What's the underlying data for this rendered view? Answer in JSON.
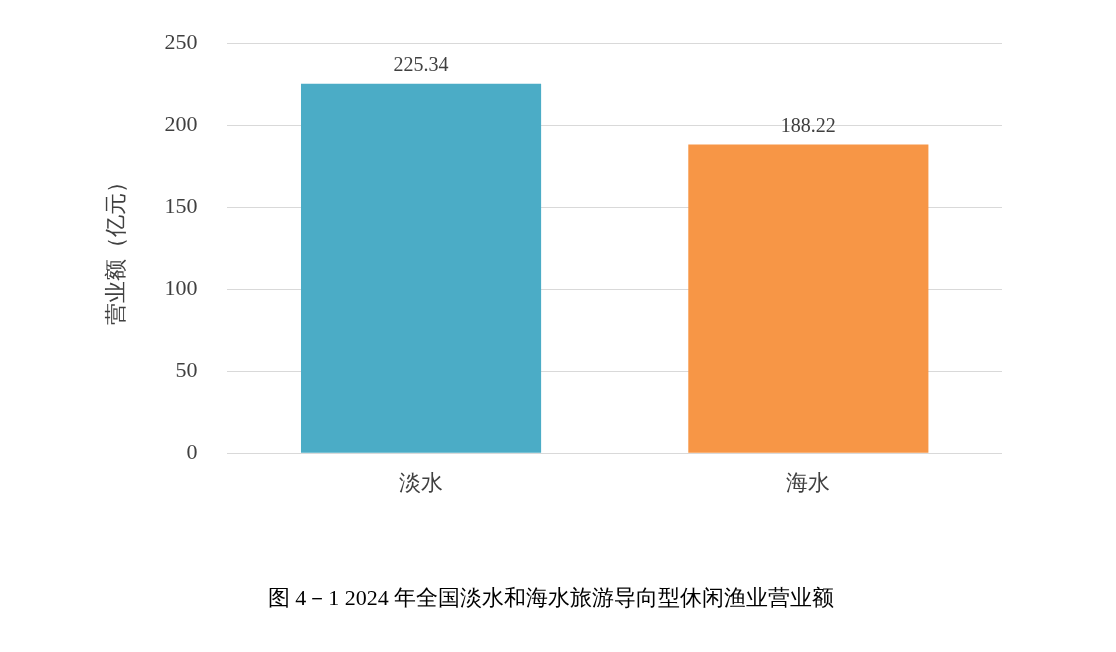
{
  "chart_data": {
    "type": "bar",
    "title": "图 4－1 2024 年全国淡水和海水旅游导向型休闲渔业营业额",
    "ylabel": "营业额（亿元）",
    "categories": [
      "淡水",
      "海水"
    ],
    "colors": [
      "#4bacc6",
      "#f79646"
    ],
    "values": [
      225.34,
      188.22
    ],
    "ylim": [
      0,
      250
    ],
    "yticks": [
      0,
      50,
      100,
      150,
      200,
      250
    ],
    "grid": "y",
    "data_labels": true,
    "legend": false
  }
}
